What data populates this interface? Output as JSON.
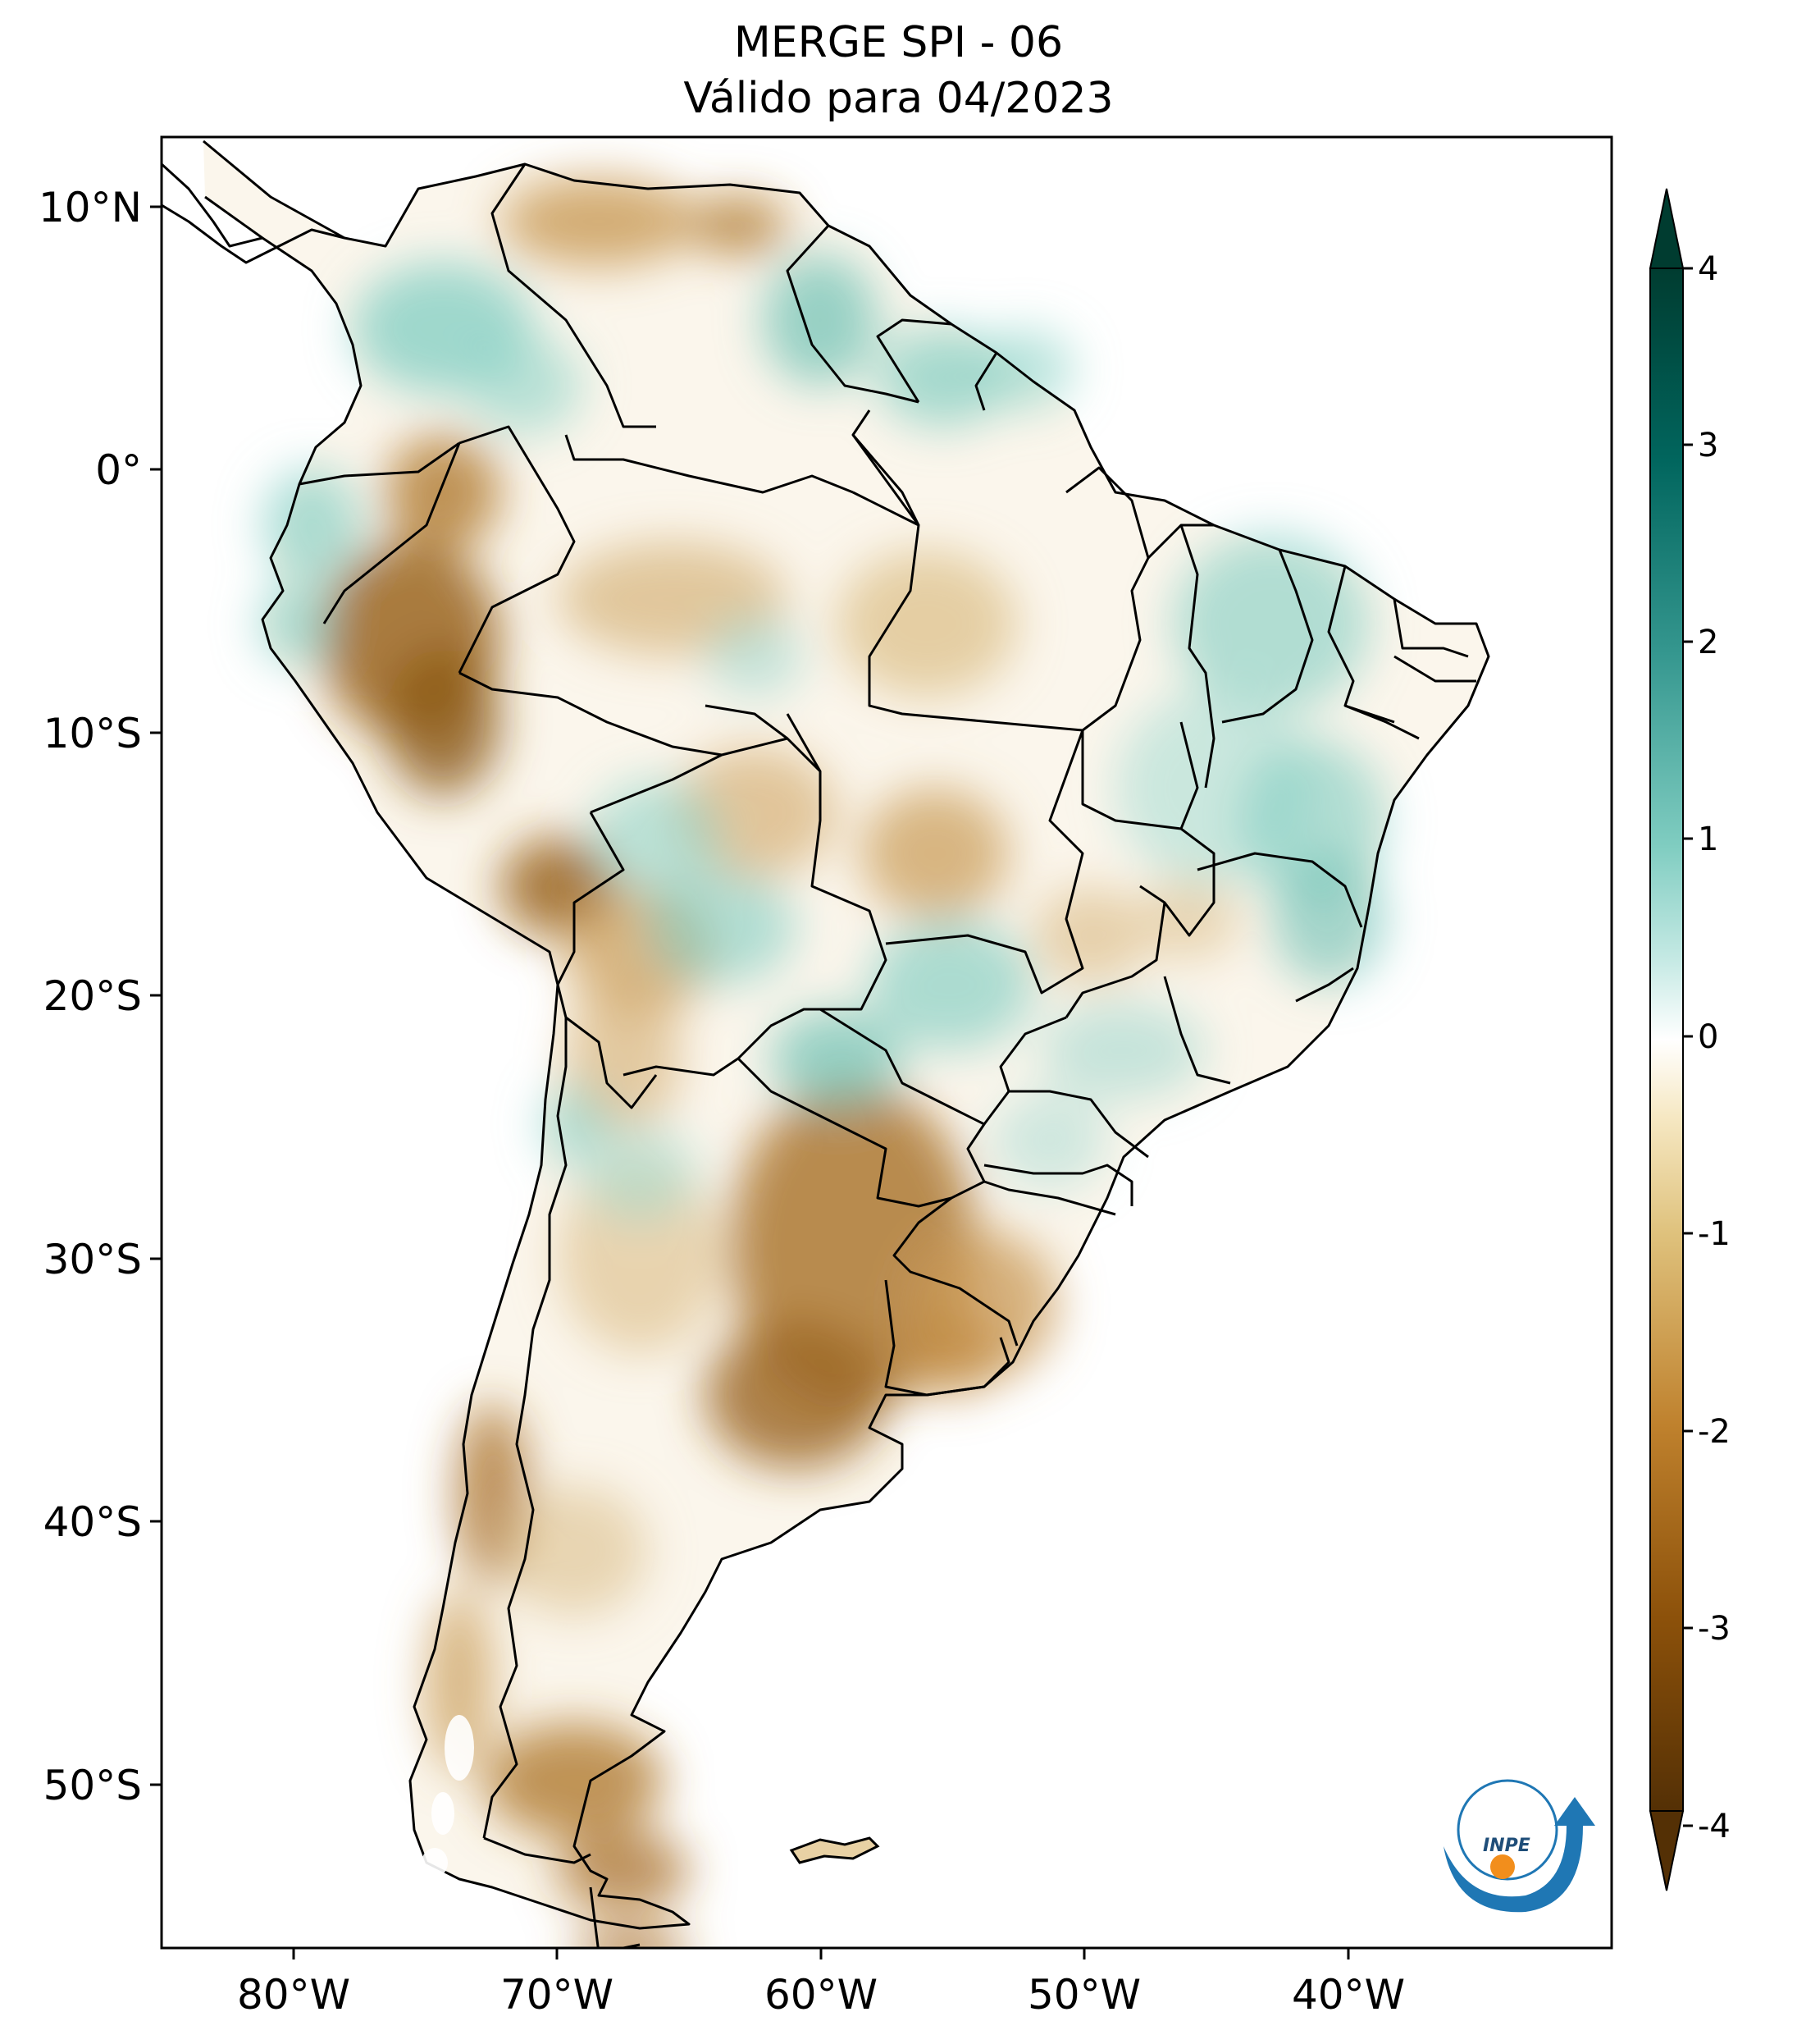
{
  "title_line1": "MERGE   SPI - 06",
  "title_line2": "Válido para 04/2023",
  "map": {
    "lat_labels": [
      "10°N",
      "0°",
      "10°S",
      "20°S",
      "30°S",
      "40°S",
      "50°S"
    ],
    "lon_labels": [
      "80°W",
      "70°W",
      "60°W",
      "50°W",
      "40°W"
    ],
    "extent": {
      "lon_min": -85,
      "lon_max": -30,
      "lat_min": -56,
      "lat_max": 13
    }
  },
  "colorbar": {
    "ticks": [
      "4",
      "3",
      "2",
      "1",
      "0",
      "-1",
      "-2",
      "-3",
      "-4"
    ],
    "range": [
      -4,
      4
    ],
    "colormap": "BrBG",
    "extend": "both",
    "colors": [
      "#543005",
      "#8c510a",
      "#bf812d",
      "#dfc27d",
      "#f6e8c3",
      "#ffffff",
      "#c7eae5",
      "#80cdc1",
      "#35978f",
      "#01665e",
      "#003c30"
    ]
  },
  "logo": {
    "text": "INPE"
  }
}
